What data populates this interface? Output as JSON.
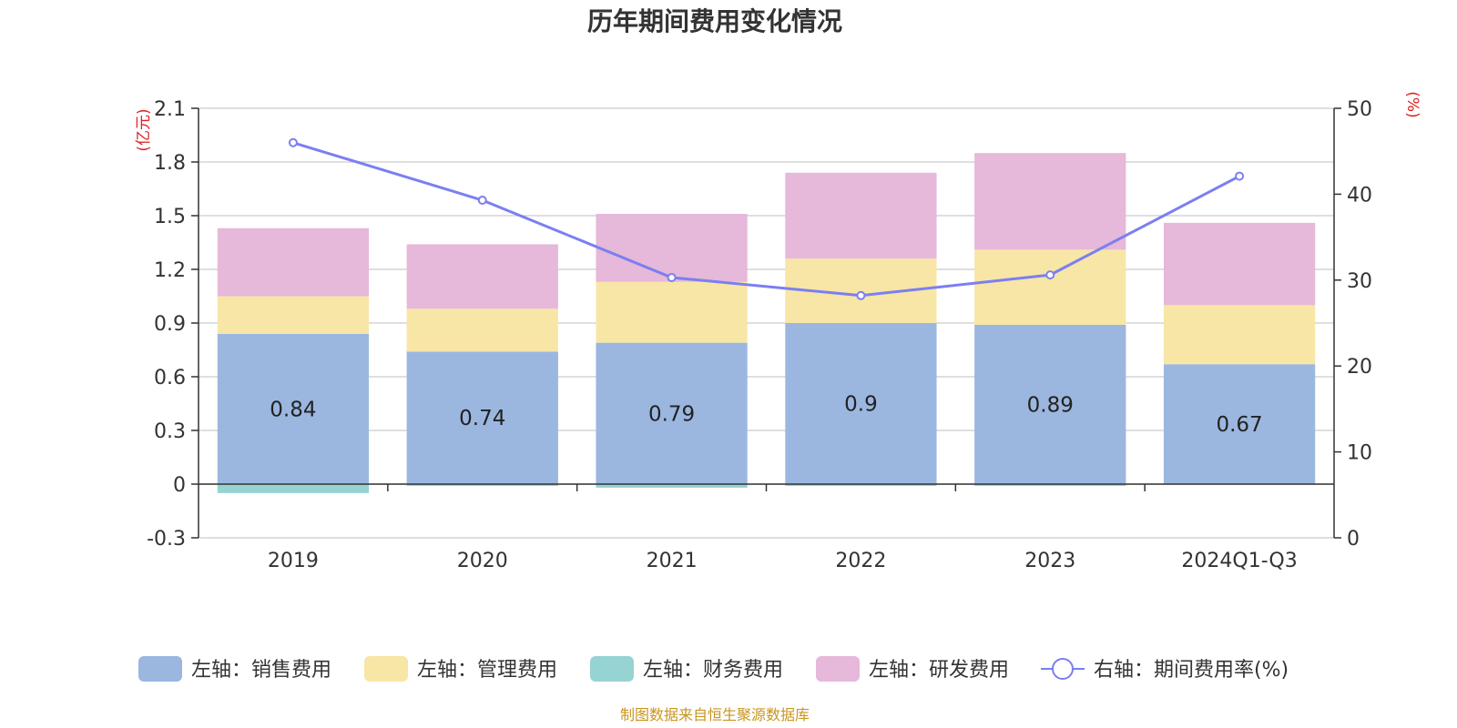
{
  "chart_data": {
    "type": "bar",
    "title": "历年期间费用变化情况",
    "categories": [
      "2019",
      "2020",
      "2021",
      "2022",
      "2023",
      "2024Q1-Q3"
    ],
    "y_left": {
      "unit": "(亿元)",
      "range": [
        -0.3,
        2.1
      ],
      "ticks": [
        "-0.3",
        "0",
        "0.3",
        "0.6",
        "0.9",
        "1.2",
        "1.5",
        "1.8",
        "2.1"
      ]
    },
    "y_right": {
      "unit": "(%)",
      "range": [
        0,
        50
      ],
      "ticks": [
        "0",
        "10",
        "20",
        "30",
        "40",
        "50"
      ]
    },
    "series": [
      {
        "name": "左轴：销售费用",
        "type": "bar",
        "axis": "left",
        "color": "#9bb7e0",
        "values": [
          0.84,
          0.74,
          0.79,
          0.9,
          0.89,
          0.67
        ],
        "labels": [
          "0.84",
          "0.74",
          "0.79",
          "0.9",
          "0.89",
          "0.67"
        ]
      },
      {
        "name": "左轴：管理费用",
        "type": "bar",
        "axis": "left",
        "color": "#f7e6a6",
        "values": [
          0.21,
          0.24,
          0.34,
          0.36,
          0.42,
          0.33
        ]
      },
      {
        "name": "左轴：财务费用",
        "type": "bar",
        "axis": "left",
        "color": "#96d3d3",
        "values": [
          -0.05,
          -0.01,
          -0.02,
          -0.01,
          -0.01,
          0.0
        ]
      },
      {
        "name": "左轴：研发费用",
        "type": "bar",
        "axis": "left",
        "color": "#e6b8d9",
        "values": [
          0.38,
          0.36,
          0.38,
          0.48,
          0.54,
          0.46
        ]
      },
      {
        "name": "右轴：期间费用率(%)",
        "type": "line",
        "axis": "right",
        "color": "#7b7ff0",
        "values": [
          46,
          39.3,
          30.3,
          28.2,
          30.6,
          42.1
        ]
      }
    ],
    "grid": true,
    "legend": "bottom"
  },
  "source_note": "制图数据来自恒生聚源数据库"
}
